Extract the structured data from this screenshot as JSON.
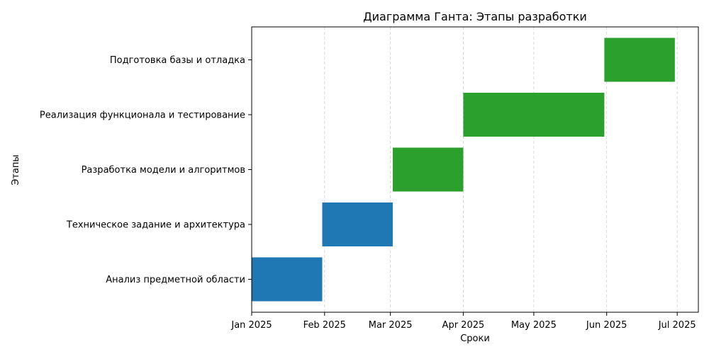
{
  "chart_data": {
    "type": "gantt",
    "title": "Диаграмма Ганта: Этапы разработки",
    "xlabel": "Сроки",
    "ylabel": "Этапы",
    "x_range": [
      "2025-01-01",
      "2025-07-10"
    ],
    "x_ticks": [
      {
        "date": "2025-01-01",
        "label": "Jan 2025"
      },
      {
        "date": "2025-02-01",
        "label": "Feb 2025"
      },
      {
        "date": "2025-03-01",
        "label": "Mar 2025"
      },
      {
        "date": "2025-04-01",
        "label": "Apr 2025"
      },
      {
        "date": "2025-05-01",
        "label": "May 2025"
      },
      {
        "date": "2025-06-01",
        "label": "Jun 2025"
      },
      {
        "date": "2025-07-01",
        "label": "Jul 2025"
      }
    ],
    "grid": "x-dashed",
    "tasks": [
      {
        "name": "Анализ предметной области",
        "start": "2025-01-01",
        "end": "2025-01-31",
        "color": "#1f77b4"
      },
      {
        "name": "Техническое задание и архитектура",
        "start": "2025-01-31",
        "end": "2025-03-02",
        "color": "#1f77b4"
      },
      {
        "name": "Разработка модели и алгоритмов",
        "start": "2025-03-02",
        "end": "2025-04-01",
        "color": "#2ca02c"
      },
      {
        "name": "Реализация функционала и тестирование",
        "start": "2025-04-01",
        "end": "2025-05-31",
        "color": "#2ca02c"
      },
      {
        "name": "Подготовка базы и отладка",
        "start": "2025-05-31",
        "end": "2025-06-30",
        "color": "#2ca02c"
      }
    ]
  }
}
